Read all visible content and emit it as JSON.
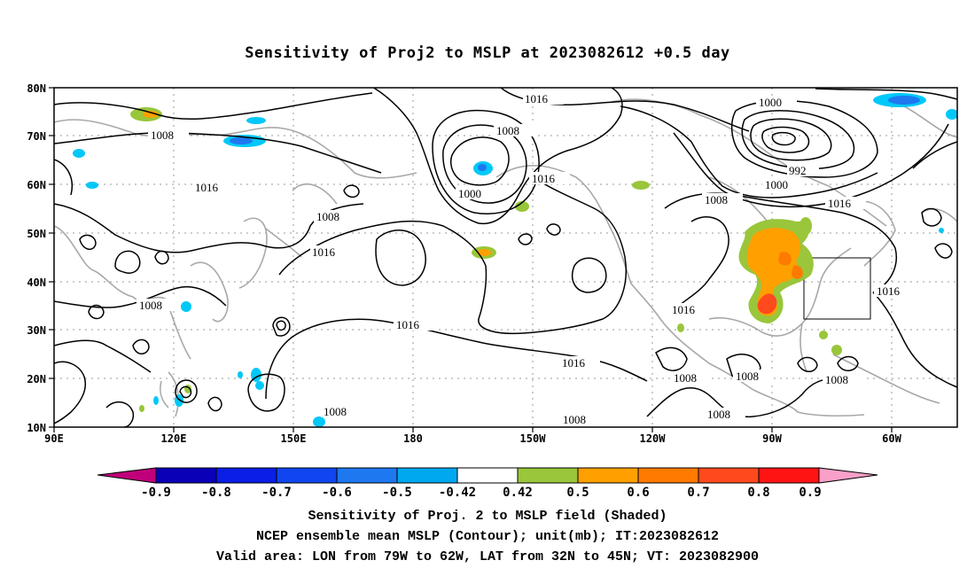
{
  "title": "Sensitivity of Proj2 to MSLP at 2023082612 +0.5 day",
  "map": {
    "lat_labels": [
      "80N",
      "70N",
      "60N",
      "50N",
      "40N",
      "30N",
      "20N",
      "10N"
    ],
    "lon_labels": [
      "90E",
      "120E",
      "150E",
      "180",
      "150W",
      "120W",
      "90W",
      "60W"
    ],
    "contour_labels": [
      "1016",
      "1008",
      "1016",
      "1008",
      "1016",
      "1016",
      "1000",
      "1008",
      "1016",
      "1016",
      "1000",
      "992",
      "1000",
      "1008",
      "1016",
      "1008",
      "1016",
      "1016",
      "1008",
      "1008",
      "1008",
      "1008",
      "1008",
      "1008"
    ],
    "valid_area_box": {
      "lon_from": "79W",
      "lon_to": "62W",
      "lat_from": "32N",
      "lat_to": "45N"
    }
  },
  "colorbar": {
    "labels": [
      "-0.9",
      "-0.8",
      "-0.7",
      "-0.6",
      "-0.5",
      "-0.42",
      "0.42",
      "0.5",
      "0.6",
      "0.7",
      "0.8",
      "0.9"
    ],
    "colors": [
      "#0a00b8",
      "#0a1ee6",
      "#1046f0",
      "#1e78f0",
      "#00a8f0",
      "#00c8f8",
      "#ffffff",
      "#99c63a",
      "#ffa000",
      "#ff7a00",
      "#ff4a1e",
      "#ff1414"
    ],
    "low_end_color": "#c0007a",
    "high_end_color": "#f8a0c8"
  },
  "captions": {
    "line1": "Sensitivity of Proj. 2 to MSLP field (Shaded)",
    "line2": "NCEP ensemble mean MSLP (Contour); unit(mb); IT:2023082612",
    "line3": "Valid area: LON from 79W to 62W, LAT from 32N to 45N; VT: 2023082900"
  }
}
